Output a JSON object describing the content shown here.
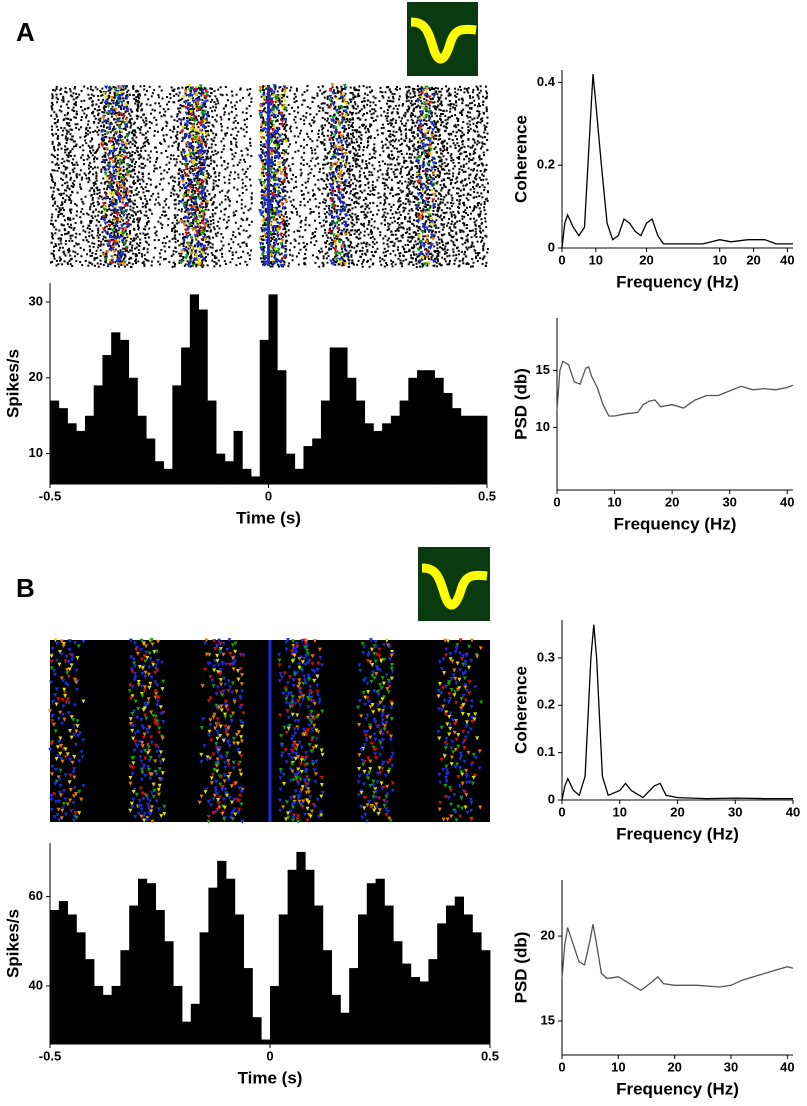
{
  "panel_labels": [
    "A",
    "B"
  ],
  "chart_data": [
    {
      "type": "histogram",
      "xlabel": "Time (s)",
      "ylabel": "Spikes/s",
      "color": "#000000",
      "bins": [
        -0.5,
        -0.48,
        -0.46,
        -0.44,
        -0.42,
        -0.4,
        -0.38,
        -0.36,
        -0.34,
        -0.32,
        -0.3,
        -0.28,
        -0.26,
        -0.24,
        -0.22,
        -0.2,
        -0.18,
        -0.16,
        -0.14,
        -0.12,
        -0.1,
        -0.08,
        -0.06,
        -0.04,
        -0.02,
        0,
        0.02,
        0.04,
        0.06,
        0.08,
        0.1,
        0.12,
        0.14,
        0.16,
        0.18,
        0.2,
        0.22,
        0.24,
        0.26,
        0.28,
        0.3,
        0.32,
        0.34,
        0.36,
        0.38,
        0.4,
        0.42,
        0.44,
        0.46,
        0.48,
        0.5
      ],
      "values": [
        17,
        16,
        14,
        13,
        15,
        19,
        23,
        26,
        25,
        20,
        15,
        12,
        9,
        8,
        19,
        24,
        31,
        29,
        17,
        10,
        9,
        13,
        8,
        7,
        25,
        31,
        21,
        10,
        8,
        11,
        12,
        17,
        24,
        24,
        20,
        17,
        14,
        13,
        14,
        15,
        17,
        20,
        21,
        21,
        20,
        18,
        16,
        15,
        15,
        15
      ],
      "xlim": [
        -0.5,
        0.5
      ],
      "xticks": [
        -0.5,
        0,
        0.5
      ],
      "ylim": [
        6,
        32.5
      ],
      "yticks": [
        10,
        20,
        30
      ]
    },
    {
      "type": "line",
      "xlabel": "Frequency (Hz)",
      "ylabel": "Coherence",
      "color": "#000000",
      "x": [
        0,
        0.5,
        1,
        2,
        3,
        4,
        5,
        5.5,
        6,
        7,
        8,
        9,
        10,
        11,
        12,
        13,
        14,
        15,
        16,
        17,
        18,
        20,
        25,
        28,
        30,
        33,
        36,
        38,
        40,
        41
      ],
      "values": [
        0,
        0.06,
        0.08,
        0.05,
        0.03,
        0.05,
        0.3,
        0.42,
        0.35,
        0.2,
        0.06,
        0.02,
        0.03,
        0.07,
        0.06,
        0.04,
        0.03,
        0.06,
        0.07,
        0.03,
        0.01,
        0.01,
        0.01,
        0.02,
        0.015,
        0.02,
        0.02,
        0.01,
        0.01,
        0.01
      ],
      "xlim": [
        0,
        41
      ],
      "xticks": [
        0,
        {
          "value": 6,
          "label": "10"
        },
        {
          "value": 15,
          "label": "20"
        },
        {
          "value": 28,
          "label": "10"
        },
        {
          "value": 34,
          "label": "20"
        },
        40
      ],
      "ylim": [
        0,
        0.43
      ],
      "yticks": [
        0,
        0.2,
        0.4
      ]
    },
    {
      "type": "line",
      "xlabel": "Frequency (Hz)",
      "ylabel": "PSD (db)",
      "color": "#555555",
      "x": [
        0,
        0.5,
        1,
        2,
        3,
        4,
        5,
        5.5,
        6,
        7,
        8,
        9,
        10,
        12,
        14,
        15,
        16,
        17,
        18,
        20,
        22,
        24,
        26,
        28,
        30,
        32,
        34,
        36,
        38,
        40,
        41
      ],
      "values": [
        11.5,
        15,
        15.8,
        15.5,
        14,
        13.8,
        15.2,
        15.3,
        14.5,
        13.5,
        12,
        11,
        11,
        11.2,
        11.3,
        12,
        12.3,
        12.4,
        11.8,
        12,
        11.7,
        12.4,
        12.8,
        12.8,
        13.2,
        13.6,
        13.3,
        13.4,
        13.3,
        13.5,
        13.7
      ],
      "xlim": [
        0,
        41
      ],
      "xticks": [
        0,
        10,
        20,
        30,
        40
      ],
      "ylim": [
        4.5,
        19.6
      ],
      "yticks": [
        10,
        15
      ]
    },
    {
      "type": "histogram",
      "xlabel": "Time (s)",
      "ylabel": "Spikes/s",
      "color": "#000000",
      "bins": [
        -0.5,
        -0.48,
        -0.46,
        -0.44,
        -0.42,
        -0.4,
        -0.38,
        -0.36,
        -0.34,
        -0.32,
        -0.3,
        -0.28,
        -0.26,
        -0.24,
        -0.22,
        -0.2,
        -0.18,
        -0.16,
        -0.14,
        -0.12,
        -0.1,
        -0.08,
        -0.06,
        -0.04,
        -0.02,
        0,
        0.02,
        0.04,
        0.06,
        0.08,
        0.1,
        0.12,
        0.14,
        0.16,
        0.18,
        0.2,
        0.22,
        0.24,
        0.26,
        0.28,
        0.3,
        0.32,
        0.34,
        0.36,
        0.38,
        0.4,
        0.42,
        0.44,
        0.46,
        0.48,
        0.5
      ],
      "values": [
        57,
        59,
        56,
        52,
        46,
        40,
        38,
        40,
        48,
        58,
        64,
        63,
        57,
        50,
        40,
        32,
        36,
        52,
        62,
        68,
        64,
        56,
        44,
        33,
        28,
        40,
        56,
        66,
        70,
        66,
        58,
        48,
        38,
        34,
        44,
        56,
        63,
        64,
        58,
        50,
        45,
        42,
        41,
        46,
        54,
        58,
        60,
        56,
        52,
        48
      ],
      "xlim": [
        -0.5,
        0.5
      ],
      "xticks": [
        -0.5,
        0,
        0.5
      ],
      "ylim": [
        27,
        72
      ],
      "yticks": [
        40,
        60
      ]
    },
    {
      "type": "line",
      "xlabel": "Frequency (Hz)",
      "ylabel": "Coherence",
      "color": "#000000",
      "x": [
        0,
        0.5,
        1,
        2,
        3,
        4,
        5,
        5.5,
        6,
        7,
        8,
        10,
        11,
        12,
        14,
        16,
        17,
        18,
        20,
        25,
        30,
        35,
        40
      ],
      "values": [
        0,
        0.03,
        0.045,
        0.02,
        0.01,
        0.05,
        0.3,
        0.37,
        0.3,
        0.05,
        0.01,
        0.02,
        0.035,
        0.02,
        0.005,
        0.03,
        0.035,
        0.01,
        0.005,
        0.003,
        0.004,
        0.003,
        0.003
      ],
      "xlim": [
        0,
        40
      ],
      "xticks": [
        0,
        10,
        20,
        30,
        40
      ],
      "ylim": [
        0,
        0.38
      ],
      "yticks": [
        0,
        0.1,
        0.2,
        0.3
      ]
    },
    {
      "type": "line",
      "xlabel": "Frequency (Hz)",
      "ylabel": "PSD (db)",
      "color": "#555555",
      "x": [
        0,
        0.5,
        1,
        2,
        3,
        4,
        5,
        5.5,
        6,
        7,
        8,
        10,
        12,
        14,
        16,
        17,
        18,
        20,
        24,
        28,
        30,
        32,
        34,
        36,
        38,
        40,
        41
      ],
      "values": [
        17.5,
        19.5,
        20.5,
        19.5,
        18.5,
        18.3,
        19.8,
        20.7,
        19.8,
        17.8,
        17.5,
        17.6,
        17.2,
        16.8,
        17.3,
        17.6,
        17.2,
        17.1,
        17.1,
        17,
        17.1,
        17.4,
        17.6,
        17.8,
        18,
        18.2,
        18.1
      ],
      "xlim": [
        0,
        41
      ],
      "xticks": [
        0,
        10,
        20,
        30,
        40
      ],
      "ylim": [
        13,
        23.3
      ],
      "yticks": [
        15,
        20
      ]
    }
  ]
}
